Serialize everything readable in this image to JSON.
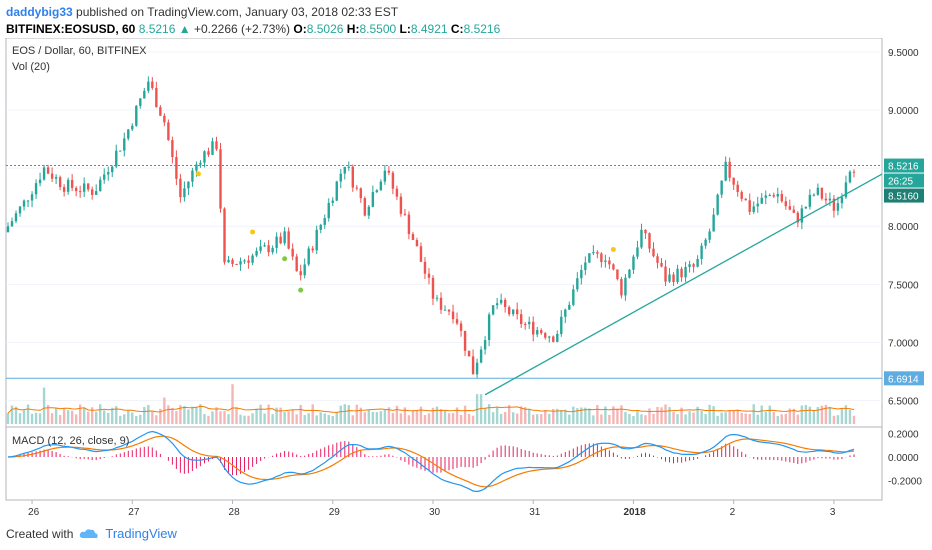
{
  "header": {
    "user": "daddybig33",
    "published": "published on TradingView.com, January 03, 2018 02:33 EST",
    "symbol": "BITFINEX:EOSUSD, 60",
    "last": "8.5216",
    "change": "+0.2266 (+2.73%)",
    "o_label": "O:",
    "o": "8.5026",
    "h_label": "H:",
    "h": "8.5500",
    "l_label": "L:",
    "l": "8.4921",
    "c_label": "C:",
    "c": "8.5216"
  },
  "legend": {
    "title": "EOS / Dollar, 60, BITFINEX",
    "vol": "Vol (20)",
    "macd": "MACD (12, 26, close, 9)"
  },
  "footer": {
    "created": "Created with",
    "brand": "TradingView"
  },
  "colors": {
    "up": "#26a69a",
    "down": "#ef5350",
    "trendline": "#26a69a",
    "macd": "#2196f3",
    "signal": "#f57c00",
    "hist": "#e91e63",
    "volma": "#f57c00"
  },
  "chart_data": {
    "type": "candlestick",
    "price_axis": {
      "ticks": [
        "9.5000",
        "9.0000",
        "8.5000",
        "8.0000",
        "7.5000",
        "7.0000",
        "6.5000"
      ],
      "range": [
        6.35,
        9.55
      ]
    },
    "time_ticks": [
      "26",
      "27",
      "28",
      "29",
      "30",
      "31",
      "2018",
      "2",
      "3"
    ],
    "price_labels": {
      "last": "8.5216",
      "countdown": "26:25",
      "trend": "8.5160",
      "support": "6.6914"
    },
    "macd_axis": {
      "ticks": [
        "0.2000",
        "0.0000",
        "-0.2000"
      ],
      "range": [
        -0.33,
        0.22
      ]
    },
    "ohlc_anchors": [
      {
        "t": 0,
        "c": 7.95
      },
      {
        "t": 10,
        "c": 8.2
      },
      {
        "t": 20,
        "c": 8.5
      },
      {
        "t": 30,
        "c": 8.35
      },
      {
        "t": 45,
        "c": 8.3
      },
      {
        "t": 60,
        "c": 8.75
      },
      {
        "t": 72,
        "c": 9.25
      },
      {
        "t": 80,
        "c": 8.9
      },
      {
        "t": 88,
        "c": 8.25
      },
      {
        "t": 98,
        "c": 8.6
      },
      {
        "t": 106,
        "c": 8.7
      },
      {
        "t": 110,
        "c": 7.65
      },
      {
        "t": 125,
        "c": 7.75
      },
      {
        "t": 140,
        "c": 7.9
      },
      {
        "t": 147,
        "c": 7.55
      },
      {
        "t": 160,
        "c": 8.1
      },
      {
        "t": 170,
        "c": 8.55
      },
      {
        "t": 180,
        "c": 8.15
      },
      {
        "t": 190,
        "c": 8.5
      },
      {
        "t": 205,
        "c": 7.85
      },
      {
        "t": 215,
        "c": 7.35
      },
      {
        "t": 225,
        "c": 7.25
      },
      {
        "t": 234,
        "c": 6.75
      },
      {
        "t": 245,
        "c": 7.35
      },
      {
        "t": 260,
        "c": 7.15
      },
      {
        "t": 275,
        "c": 7.05
      },
      {
        "t": 290,
        "c": 7.7
      },
      {
        "t": 300,
        "c": 7.75
      },
      {
        "t": 308,
        "c": 7.45
      },
      {
        "t": 318,
        "c": 7.95
      },
      {
        "t": 330,
        "c": 7.55
      },
      {
        "t": 345,
        "c": 7.65
      },
      {
        "t": 353,
        "c": 8.0
      },
      {
        "t": 360,
        "c": 8.5
      },
      {
        "t": 372,
        "c": 8.15
      },
      {
        "t": 385,
        "c": 8.3
      },
      {
        "t": 395,
        "c": 8.05
      },
      {
        "t": 405,
        "c": 8.3
      },
      {
        "t": 415,
        "c": 8.15
      },
      {
        "t": 422,
        "c": 8.52
      }
    ],
    "volume_spikes": [
      {
        "t": 18,
        "v": 0.55
      },
      {
        "t": 78,
        "v": 0.4
      },
      {
        "t": 112,
        "v": 0.6
      },
      {
        "t": 235,
        "v": 0.45
      },
      {
        "t": 240,
        "v": 0.3
      }
    ],
    "trendline": [
      {
        "t": 238,
        "p": 6.55
      },
      {
        "t": 427,
        "p": 8.5
      }
    ],
    "support_level": 6.6914,
    "markers": [
      {
        "t": 95,
        "p": 8.45,
        "color": "#f9c80e"
      },
      {
        "t": 122,
        "p": 7.95,
        "color": "#f9c80e"
      },
      {
        "t": 138,
        "p": 7.72,
        "color": "#7ccb3f"
      },
      {
        "t": 146,
        "p": 7.45,
        "color": "#7ccb3f"
      },
      {
        "t": 302,
        "p": 7.8,
        "color": "#f9c80e"
      }
    ]
  }
}
